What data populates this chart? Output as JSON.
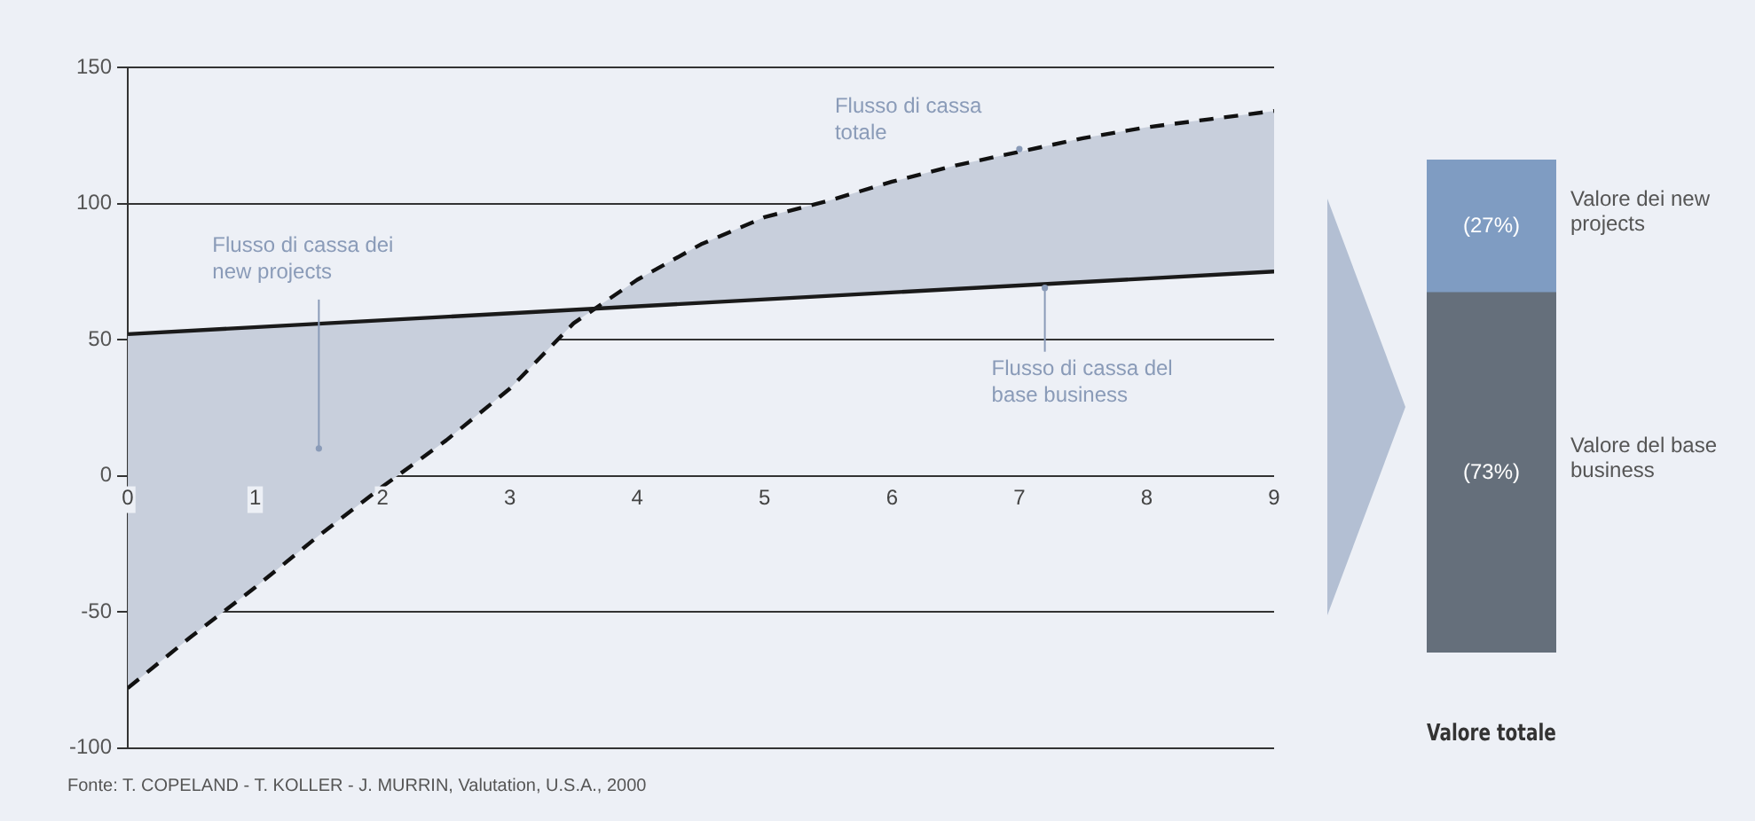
{
  "chart_data": [
    {
      "type": "line",
      "xlim": [
        0,
        9
      ],
      "xticks": [
        0,
        1,
        2,
        3,
        4,
        5,
        6,
        7,
        8,
        9
      ],
      "ylim": [
        -100,
        150
      ],
      "yticks": [
        -100,
        -50,
        0,
        50,
        100,
        150
      ],
      "grid": "y",
      "legend": false,
      "series": [
        {
          "color": "#1a1a1a",
          "line_style": "solid",
          "x": [
            0,
            9
          ],
          "values": [
            52,
            75
          ]
        },
        {
          "color": "#111111",
          "line_style": "dashed",
          "x": [
            0,
            0.5,
            1,
            1.5,
            2,
            2.5,
            3,
            3.5,
            4,
            4.5,
            5,
            5.5,
            6,
            6.5,
            7,
            7.5,
            8,
            8.5,
            9
          ],
          "values": [
            -78,
            -59,
            -41,
            -22,
            -4,
            13,
            32,
            56,
            72,
            85,
            95,
            101,
            108,
            114,
            119,
            124,
            128,
            131,
            134
          ],
          "lower": [
            52,
            53,
            55,
            56,
            57,
            58,
            60,
            61,
            62,
            64,
            65,
            66,
            67,
            69,
            70,
            71,
            72,
            74,
            75
          ],
          "upper": [
            -78,
            -59,
            -41,
            -22,
            -4,
            13,
            32,
            56,
            72,
            85,
            95,
            101,
            108,
            114,
            119,
            124,
            128,
            131,
            134
          ]
        }
      ],
      "annotations": [
        {
          "text": "Flusso di cassa totale",
          "x": 7,
          "y": 120
        },
        {
          "text": "Flusso di cassa dei new projects",
          "x": 1.5,
          "y": 10
        },
        {
          "text": "Flusso di cassa del base business",
          "x": 7.2,
          "y": 69
        },
        "Fonte: T. COPELAND - T. KOLLER - J. MURRIN, Valutation, U.S.A., 2000"
      ]
    },
    {
      "type": "bar",
      "stacked": true,
      "categories": [
        null
      ],
      "xlabel": "Valore totale",
      "legend": false,
      "series": [
        {
          "name": "Valore del base business",
          "color": "#656f7b",
          "values": [
            73
          ],
          "value_labels": [
            "(73%)"
          ]
        },
        {
          "name": "Valore dei new projects",
          "color": "#7f9cc2",
          "values": [
            27
          ],
          "value_labels": [
            "(27%)"
          ]
        }
      ]
    }
  ]
}
